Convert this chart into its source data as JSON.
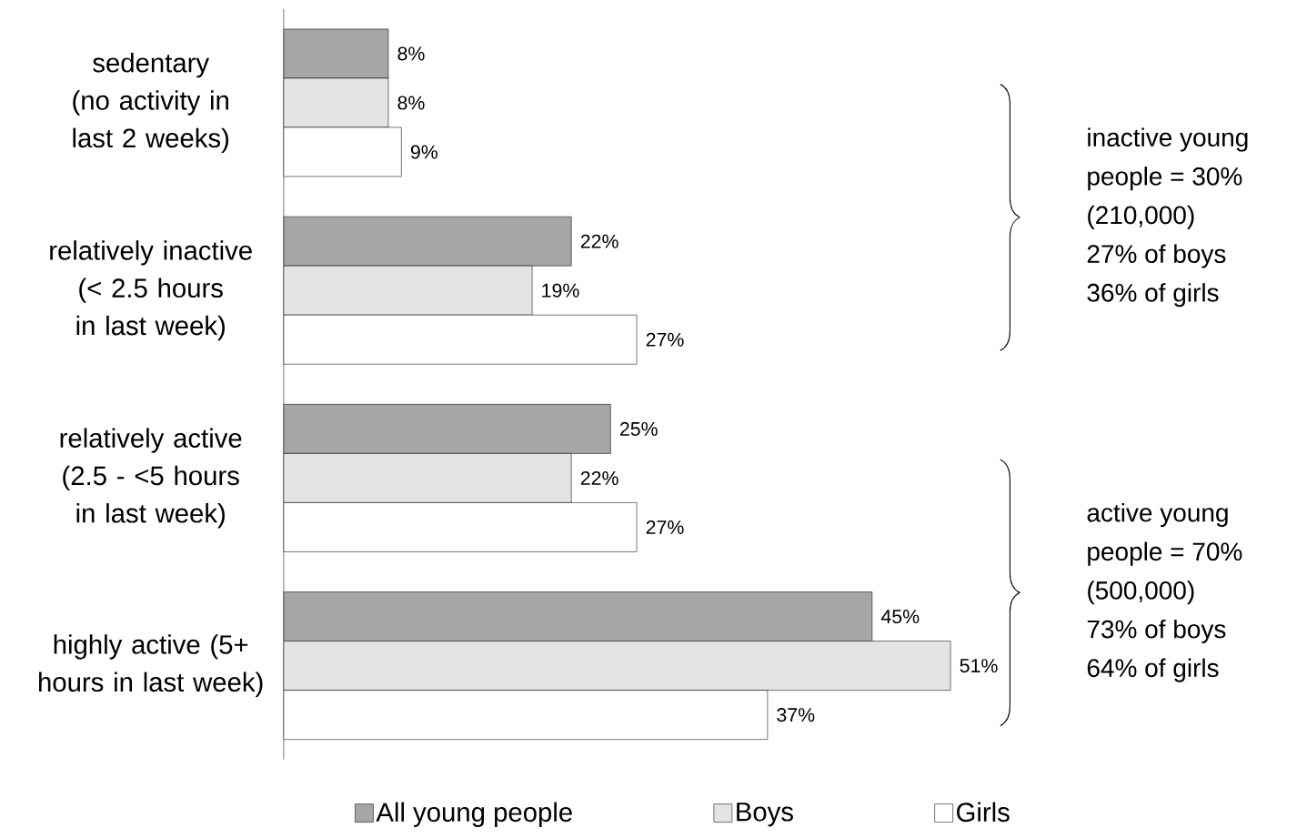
{
  "chart_data": {
    "type": "bar",
    "orientation": "horizontal",
    "categories": [
      "sedentary (no activity in last 2 weeks)",
      "relatively inactive (< 2.5 hours in last week)",
      "relatively active (2.5 - <5 hours in last week)",
      "highly active (5+ hours in last week)"
    ],
    "series": [
      {
        "name": "All young people",
        "color": "#a6a6a6",
        "values": [
          8,
          22,
          25,
          45
        ],
        "value_labels": [
          "8%",
          "22%",
          "25%",
          "45%"
        ]
      },
      {
        "name": "Boys",
        "color": "#e4e4e4",
        "values": [
          8,
          19,
          22,
          51
        ],
        "value_labels": [
          "8%",
          "19%",
          "22%",
          "51%"
        ]
      },
      {
        "name": "Girls",
        "color": "#ffffff",
        "values": [
          9,
          27,
          27,
          37
        ],
        "value_labels": [
          "9%",
          "27%",
          "27%",
          "37%"
        ]
      }
    ],
    "annotations": [
      "inactive young",
      "people = 30%",
      "(210,000)",
      "27% of boys",
      "36% of girls",
      "active young",
      "people = 70%",
      "(500,000)",
      "73% of boys",
      "64% of girls"
    ],
    "legend": "bottom"
  }
}
